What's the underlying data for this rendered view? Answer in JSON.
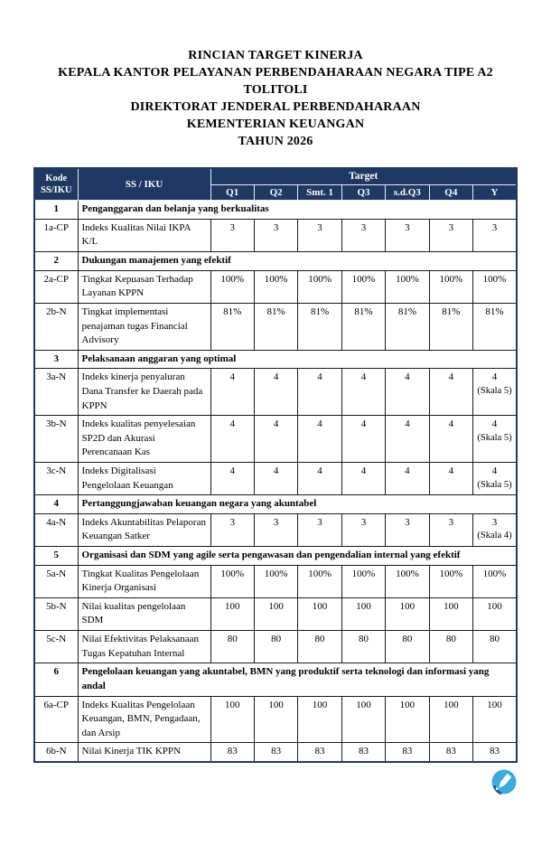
{
  "title": {
    "lines": [
      "RINCIAN TARGET KINERJA",
      "KEPALA KANTOR PELAYANAN PERBENDAHARAAN NEGARA TIPE A2",
      "TOLITOLI",
      "DIREKTORAT JENDERAL PERBENDAHARAAN",
      "KEMENTERIAN KEUANGAN",
      "TAHUN 2026"
    ]
  },
  "colors": {
    "header_bg": "#1F3864",
    "header_text": "#FFFFFF",
    "stamp_blue": "#3AAADF"
  },
  "table": {
    "header": {
      "kode_line1": "Kode",
      "kode_line2": "SS/IKU",
      "ss_iku": "SS / IKU",
      "target": "Target",
      "periods": [
        "Q1",
        "Q2",
        "Smt. 1",
        "Q3",
        "s.d.Q3",
        "Q4",
        "Y"
      ]
    },
    "rows": [
      {
        "type": "section",
        "kode": "1",
        "label": "Penganggaran dan belanja yang berkualitas"
      },
      {
        "type": "item",
        "kode": "1a-CP",
        "label": "Indeks Kualitas Nilai IKPA K/L",
        "values": [
          "3",
          "3",
          "3",
          "3",
          "3",
          "3",
          "3"
        ],
        "y_note": ""
      },
      {
        "type": "section",
        "kode": "2",
        "label": "Dukungan manajemen yang efektif"
      },
      {
        "type": "item",
        "kode": "2a-CP",
        "label": "Tingkat Kepuasan Terhadap Layanan KPPN",
        "values": [
          "100%",
          "100%",
          "100%",
          "100%",
          "100%",
          "100%",
          "100%"
        ],
        "y_note": ""
      },
      {
        "type": "item",
        "kode": "2b-N",
        "label": "Tingkat implementasi penajaman tugas Financial Advisory",
        "values": [
          "81%",
          "81%",
          "81%",
          "81%",
          "81%",
          "81%",
          "81%"
        ],
        "y_note": ""
      },
      {
        "type": "section",
        "kode": "3",
        "label": "Pelaksanaan anggaran yang optimal"
      },
      {
        "type": "item",
        "kode": "3a-N",
        "label": "Indeks kinerja penyaluran Dana Transfer ke Daerah pada KPPN",
        "values": [
          "4",
          "4",
          "4",
          "4",
          "4",
          "4",
          "4"
        ],
        "y_note": "(Skala 5)"
      },
      {
        "type": "item",
        "kode": "3b-N",
        "label": "Indeks kualitas penyelesaian SP2D dan Akurasi Perencanaan Kas",
        "values": [
          "4",
          "4",
          "4",
          "4",
          "4",
          "4",
          "4"
        ],
        "y_note": "(Skala 5)"
      },
      {
        "type": "item",
        "kode": "3c-N",
        "label": "Indeks Digitalisasi Pengelolaan Keuangan",
        "values": [
          "4",
          "4",
          "4",
          "4",
          "4",
          "4",
          "4"
        ],
        "y_note": "(Skala 5)"
      },
      {
        "type": "section",
        "kode": "4",
        "label": "Pertanggungjawaban keuangan negara yang akuntabel"
      },
      {
        "type": "item",
        "kode": "4a-N",
        "label": "Indeks Akuntabilitas Pelaporan Keuangan Satker",
        "values": [
          "3",
          "3",
          "3",
          "3",
          "3",
          "3",
          "3"
        ],
        "y_note": "(Skala 4)"
      },
      {
        "type": "section",
        "kode": "5",
        "label": "Organisasi dan SDM yang agile serta pengawasan dan pengendalian internal yang efektif"
      },
      {
        "type": "item",
        "kode": "5a-N",
        "label": "Tingkat Kualitas Pengelolaan Kinerja Organisasi",
        "values": [
          "100%",
          "100%",
          "100%",
          "100%",
          "100%",
          "100%",
          "100%"
        ],
        "y_note": ""
      },
      {
        "type": "item",
        "kode": "5b-N",
        "label": "Nilai kualitas pengelolaan SDM",
        "values": [
          "100",
          "100",
          "100",
          "100",
          "100",
          "100",
          "100"
        ],
        "y_note": ""
      },
      {
        "type": "item",
        "kode": "5c-N",
        "label": "Nilai Efektivitas Pelaksanaan Tugas Kepatuhan Internal",
        "values": [
          "80",
          "80",
          "80",
          "80",
          "80",
          "80",
          "80"
        ],
        "y_note": ""
      },
      {
        "type": "section",
        "kode": "6",
        "label": "Pengelolaan keuangan yang akuntabel, BMN yang produktif serta teknologi dan informasi yang andal"
      },
      {
        "type": "item",
        "kode": "6a-CP",
        "label": "Indeks Kualitas Pengelolaan Keuangan, BMN, Pengadaan, dan Arsip",
        "values": [
          "100",
          "100",
          "100",
          "100",
          "100",
          "100",
          "100"
        ],
        "y_note": ""
      },
      {
        "type": "item",
        "kode": "6b-N",
        "label": "Nilai Kinerja TIK KPPN",
        "values": [
          "83",
          "83",
          "83",
          "83",
          "83",
          "83",
          "83"
        ],
        "y_note": ""
      }
    ]
  }
}
